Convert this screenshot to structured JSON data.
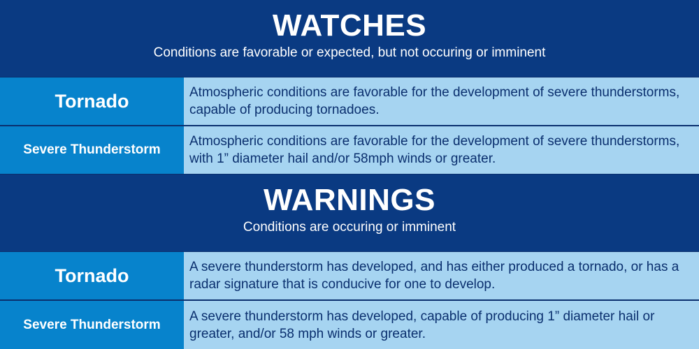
{
  "watches": {
    "title": "WATCHES",
    "subtitle": "Conditions are favorable or expected, but not occuring or imminent",
    "rows": [
      {
        "label": "Tornado",
        "description": "Atmospheric conditions are favorable for the development of severe thunderstorms, capable of producing tornadoes."
      },
      {
        "label": "Severe Thunderstorm",
        "description": "Atmospheric conditions are favorable for the development of severe thunderstorms, with 1” diameter hail and/or 58mph winds or greater."
      }
    ]
  },
  "warnings": {
    "title": "WARNINGS",
    "subtitle": "Conditions are occuring or imminent",
    "rows": [
      {
        "label": "Tornado",
        "description": "A severe thunderstorm has developed, and has either produced a tornado, or has a radar signature that is conducive for one to develop."
      },
      {
        "label": "Severe Thunderstorm",
        "description": "A severe thunderstorm has developed, capable of producing 1” diameter hail or greater, and/or 58 mph winds or greater."
      }
    ]
  },
  "colors": {
    "header_bg": "#0a3a82",
    "label_bg": "#0783cc",
    "description_bg": "#a6d4f1",
    "text_dark": "#0a2f6e"
  }
}
